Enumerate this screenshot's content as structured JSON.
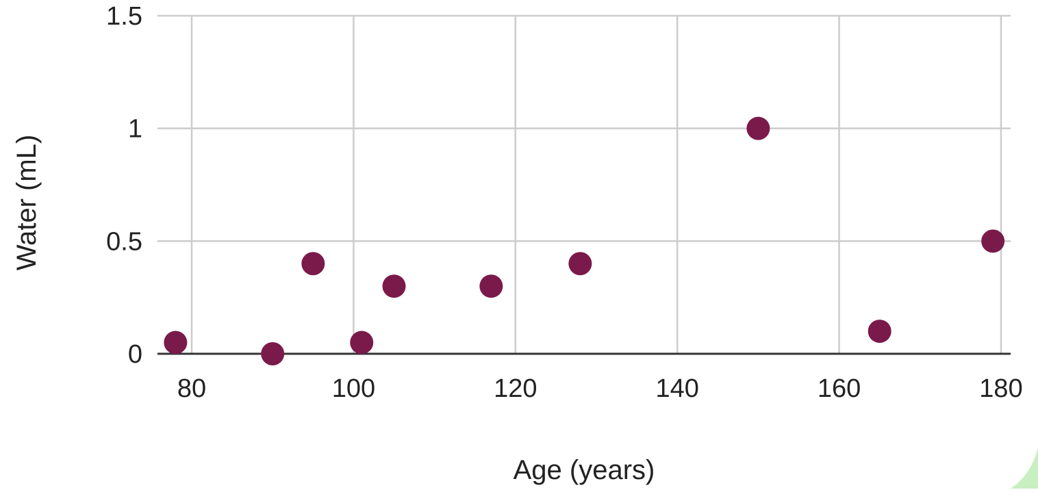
{
  "chart_data": {
    "type": "scatter",
    "title": "",
    "xlabel": "Age (years)",
    "ylabel": "Water (mL)",
    "xlim": [
      75,
      181
    ],
    "ylim": [
      0,
      1.5
    ],
    "x_ticks": [
      80,
      100,
      120,
      140,
      160,
      180
    ],
    "x_tick_labels": [
      "80",
      "100",
      "120",
      "140",
      "160",
      "180"
    ],
    "y_ticks": [
      0,
      0.5,
      1,
      1.5
    ],
    "y_tick_labels": [
      "0",
      "0.5",
      "1",
      "1.5"
    ],
    "grid": true,
    "legend": "none",
    "series": [
      {
        "color": "#7a1a4a",
        "points": [
          {
            "x": 78,
            "y": 0.05
          },
          {
            "x": 90,
            "y": 0.0
          },
          {
            "x": 95,
            "y": 0.4
          },
          {
            "x": 101,
            "y": 0.05
          },
          {
            "x": 105,
            "y": 0.3
          },
          {
            "x": 117,
            "y": 0.3
          },
          {
            "x": 128,
            "y": 0.4
          },
          {
            "x": 150,
            "y": 1.0
          },
          {
            "x": 165,
            "y": 0.1
          },
          {
            "x": 179,
            "y": 0.5
          }
        ]
      }
    ]
  },
  "colors": {
    "grid": "#cccccc",
    "axis": "#333333",
    "marker": "#7a1a4a",
    "corner_accent": "#c8efc0"
  }
}
